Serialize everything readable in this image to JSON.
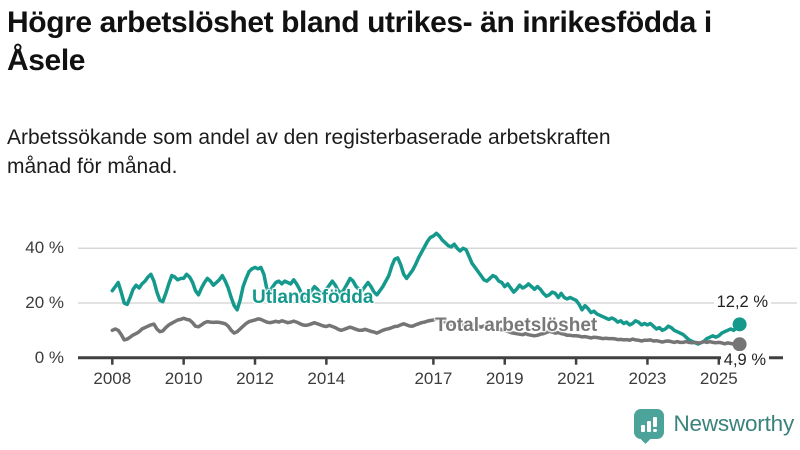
{
  "header": {
    "title": "Högre arbetslöshet bland utrikes- än inrikesfödda i Åsele",
    "subtitle": "Arbetssökande som andel av den registerbaserade arbetskraften månad för månad."
  },
  "chart_data": {
    "type": "line",
    "title": "Högre arbetslöshet bland utrikes- än inrikesfödda i Åsele",
    "x_unit": "month",
    "x_start": "2008-01",
    "x_end": "2025-08",
    "x_tick_years": [
      2008,
      2010,
      2012,
      2014,
      2017,
      2019,
      2021,
      2023,
      2025
    ],
    "y_ticks_percent": [
      0,
      20,
      40
    ],
    "y_tick_labels": [
      "0 %",
      "20 %",
      "40 %"
    ],
    "ylim": [
      0,
      48
    ],
    "grid": "horizontal",
    "axis_color": "#404040",
    "grid_color": "#d8d8d8",
    "series": [
      {
        "name": "Utlandsfödda",
        "color": "#14998c",
        "end_label": "12,2 %",
        "end_value": 12.2,
        "values": [
          24.5,
          26,
          27.5,
          24,
          20,
          19.5,
          22,
          25,
          26.5,
          25.5,
          27,
          28,
          29.5,
          30.5,
          28,
          24,
          21,
          20.5,
          23.5,
          27,
          30,
          29.5,
          28.5,
          29,
          29,
          30.5,
          29.5,
          27.5,
          24.5,
          23,
          25.5,
          27.5,
          29,
          28,
          26.5,
          27.5,
          28.5,
          30,
          28,
          25.5,
          22,
          19,
          17.5,
          21,
          26,
          29,
          31.5,
          32.5,
          33,
          32.5,
          33,
          30.5,
          25,
          24.5,
          26,
          27.5,
          28,
          27,
          28,
          27.5,
          27,
          28.5,
          27,
          25,
          22.5,
          21,
          22,
          24.5,
          26,
          25,
          23.5,
          24,
          25,
          26.5,
          28,
          26.5,
          24.5,
          23.5,
          25,
          27,
          29,
          28,
          26,
          25,
          24.5,
          26,
          27.5,
          26,
          24,
          23,
          24.5,
          26,
          28,
          30,
          33.5,
          36,
          36.5,
          34,
          30.5,
          29,
          30.5,
          32,
          34,
          36.5,
          38.5,
          40.5,
          42.5,
          44,
          44.5,
          45.5,
          44.5,
          43,
          42,
          41,
          40.5,
          41.5,
          40,
          39,
          40,
          39.5,
          37,
          34.5,
          33,
          31.5,
          30,
          28.5,
          28,
          29,
          30,
          29.5,
          28,
          27.5,
          26,
          27,
          25.5,
          24,
          25,
          26.5,
          25.5,
          26,
          27,
          26,
          25,
          26,
          25,
          23.5,
          22.5,
          23,
          24,
          23.5,
          22,
          23.5,
          22,
          21.5,
          22,
          21.5,
          21,
          19.5,
          17.5,
          19,
          18,
          16.5,
          17,
          16,
          15.5,
          15,
          14.5,
          14,
          14.5,
          14,
          13,
          13.5,
          12.5,
          13,
          12,
          12.5,
          13.5,
          13,
          12,
          12.5,
          12,
          12.5,
          11.5,
          10.5,
          11,
          10,
          10.5,
          11.5,
          11,
          10,
          9.5,
          9,
          8.5,
          7.5,
          6.5,
          6,
          5.5,
          5,
          5.5,
          6,
          7,
          7.5,
          8,
          7.5,
          8,
          9,
          9.5,
          10,
          10.5,
          10,
          11,
          12.2
        ]
      },
      {
        "name": "Total arbetslöshet",
        "color": "#757575",
        "end_label": "4,9 %",
        "end_value": 4.9,
        "values": [
          10,
          10.5,
          10,
          8.5,
          6.5,
          6.8,
          7.5,
          8.3,
          8.8,
          9.5,
          10.5,
          11,
          11.5,
          12,
          12.3,
          10.5,
          9.5,
          9.8,
          11,
          12,
          12.6,
          13.2,
          13.8,
          14,
          14.4,
          14,
          13.8,
          12.8,
          11.5,
          11.3,
          12,
          12.8,
          13.2,
          13,
          12.9,
          13,
          12.9,
          12.7,
          12.4,
          11.5,
          10,
          9,
          9.5,
          10.5,
          11.5,
          12.5,
          13.2,
          13.5,
          13.8,
          14.2,
          14,
          13.5,
          13,
          12.8,
          13,
          13.3,
          13,
          13.5,
          13.2,
          12.8,
          13,
          13.4,
          13,
          12.5,
          12,
          11.8,
          12,
          12.4,
          12.8,
          12.4,
          12,
          11.6,
          11.4,
          11.8,
          11.4,
          11,
          10.4,
          10,
          10.4,
          10.8,
          11.2,
          10.8,
          10.4,
          10,
          10,
          10.4,
          10,
          9.6,
          9.4,
          9,
          9.5,
          10,
          10.4,
          10.6,
          11,
          11.4,
          11.5,
          12,
          12.4,
          12,
          11.6,
          11.5,
          12,
          12.4,
          12.8,
          13,
          13.4,
          13.6,
          13.8,
          14.2,
          13.8,
          13.4,
          13,
          12.6,
          12.2,
          12.6,
          12.2,
          12.4,
          12,
          11.6,
          12,
          12.4,
          12,
          11.6,
          11.2,
          11.6,
          11.2,
          11.6,
          11.2,
          10.8,
          10.6,
          10.2,
          10,
          9.6,
          9.2,
          9,
          8.8,
          8.6,
          8.4,
          8.8,
          8.4,
          8.2,
          8,
          8.2,
          8.6,
          8.8,
          9.2,
          9.6,
          9.4,
          9,
          9.2,
          8.8,
          8.6,
          8.2,
          8.2,
          8,
          8,
          7.9,
          7.6,
          7.7,
          7.5,
          7.2,
          7.5,
          7.4,
          7.2,
          7,
          7.1,
          7,
          7,
          6.9,
          6.6,
          6.7,
          6.5,
          6.6,
          6.4,
          6.8,
          6.5,
          6.4,
          6.1,
          6.4,
          6.4,
          6.5,
          6.1,
          6.2,
          6,
          5.7,
          6,
          6.1,
          5.9,
          5.6,
          5.9,
          5.6,
          5.6,
          5.9,
          5.6,
          5.5,
          5.6,
          5.4,
          5.5,
          5.9,
          5.6,
          5.9,
          5.6,
          5.5,
          5.6,
          5.4,
          5.1,
          5.4,
          5.2,
          5,
          5.1,
          4.9
        ]
      }
    ]
  },
  "footer": {
    "brand": "Newsworthy",
    "brand_color": "#3a837b",
    "mark_color": "#4ba39a"
  }
}
